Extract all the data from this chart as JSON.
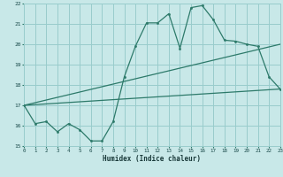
{
  "title": "",
  "xlabel": "Humidex (Indice chaleur)",
  "bg_color": "#c8e8e8",
  "grid_color": "#99cccc",
  "line_color": "#2d7a6a",
  "xlim": [
    0,
    23
  ],
  "ylim": [
    15,
    22
  ],
  "xticks": [
    0,
    1,
    2,
    3,
    4,
    5,
    6,
    7,
    8,
    9,
    10,
    11,
    12,
    13,
    14,
    15,
    16,
    17,
    18,
    19,
    20,
    21,
    22,
    23
  ],
  "yticks": [
    15,
    16,
    17,
    18,
    19,
    20,
    21,
    22
  ],
  "main_x": [
    0,
    1,
    2,
    3,
    4,
    5,
    6,
    7,
    8,
    9,
    10,
    11,
    12,
    13,
    14,
    15,
    16,
    17,
    18,
    19,
    20,
    21,
    22,
    23
  ],
  "main_y": [
    17.0,
    16.1,
    16.2,
    15.7,
    16.1,
    15.8,
    15.25,
    15.25,
    16.2,
    18.4,
    19.9,
    21.05,
    21.05,
    21.5,
    19.8,
    21.8,
    21.9,
    21.2,
    20.2,
    20.15,
    20.0,
    19.9,
    18.4,
    17.8
  ],
  "line2_x": [
    0,
    23
  ],
  "line2_y": [
    17.0,
    17.8
  ],
  "line3_x": [
    0,
    23
  ],
  "line3_y": [
    17.0,
    20.0
  ]
}
